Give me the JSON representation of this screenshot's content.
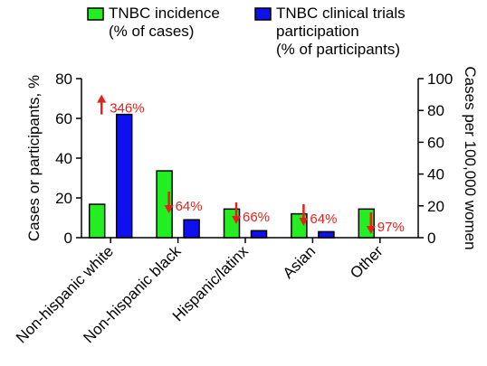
{
  "chart_data": {
    "type": "bar",
    "title": "",
    "categories": [
      "Non-hispanic white",
      "Non-hispanic black",
      "Hispanic/latinx",
      "Asian",
      "Other"
    ],
    "series": [
      {
        "name_lines": [
          "TNBC incidence",
          "(% of cases)"
        ],
        "color": "#22ee22",
        "axis": "right",
        "values": [
          21,
          42,
          18,
          15,
          18
        ]
      },
      {
        "name_lines": [
          "TNBC clinical trials",
          "participation",
          "(% of participants)"
        ],
        "color": "#1010ee",
        "axis": "left",
        "values": [
          62,
          9,
          3.5,
          3,
          0
        ]
      }
    ],
    "ylabel_left": "Cases or participants, %",
    "ylabel_right": "Cases per 100,000 women",
    "ylim_left": [
      0,
      80
    ],
    "yticks_left": [
      "0",
      "20",
      "40",
      "60",
      "80"
    ],
    "ylim_right": [
      0,
      100
    ],
    "yticks_right": [
      "0",
      "20",
      "40",
      "60",
      "80",
      "100"
    ],
    "grid": false,
    "legend_position": "top",
    "annotations": [
      {
        "category": "Non-hispanic white",
        "direction": "up",
        "text": "346%"
      },
      {
        "category": "Non-hispanic black",
        "direction": "down",
        "text": "64%"
      },
      {
        "category": "Hispanic/latinx",
        "direction": "down",
        "text": "66%"
      },
      {
        "category": "Asian",
        "direction": "down",
        "text": "64%"
      },
      {
        "category": "Other",
        "direction": "down",
        "text": "97%"
      }
    ],
    "annotation_color": "#e8201a"
  }
}
